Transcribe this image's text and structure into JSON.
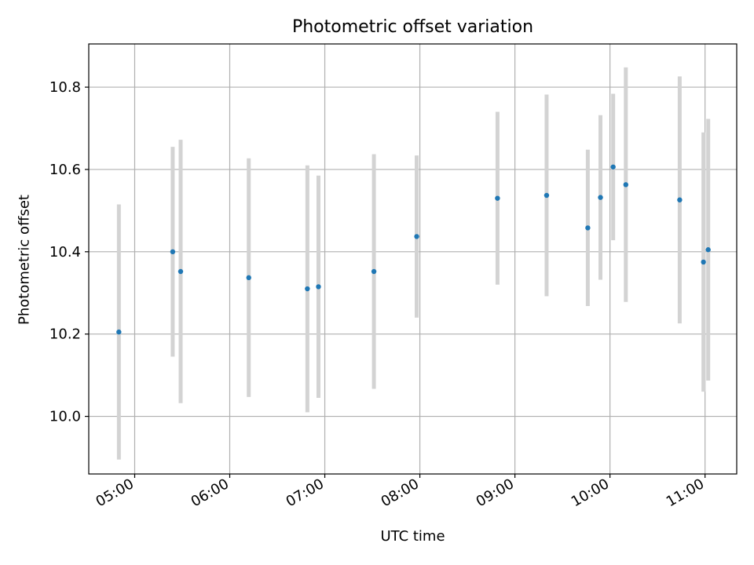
{
  "chart_data": {
    "type": "scatter",
    "title": "Photometric offset variation",
    "xlabel": "UTC time",
    "ylabel": "Photometric offset",
    "x_tick_labels": [
      "05:00",
      "06:00",
      "07:00",
      "08:00",
      "09:00",
      "10:00",
      "11:00"
    ],
    "y_tick_labels": [
      "10.0",
      "10.2",
      "10.4",
      "10.6",
      "10.8"
    ],
    "xlim": [
      "04:31",
      "11:20"
    ],
    "ylim": [
      9.86,
      10.905
    ],
    "grid": true,
    "points": [
      {
        "time": "04:50",
        "y": 10.205,
        "err": 0.31
      },
      {
        "time": "05:24",
        "y": 10.4,
        "err": 0.255
      },
      {
        "time": "05:29",
        "y": 10.352,
        "err": 0.32
      },
      {
        "time": "06:12",
        "y": 10.337,
        "err": 0.29
      },
      {
        "time": "06:49",
        "y": 10.31,
        "err": 0.3
      },
      {
        "time": "06:56",
        "y": 10.315,
        "err": 0.27
      },
      {
        "time": "07:31",
        "y": 10.352,
        "err": 0.285
      },
      {
        "time": "07:58",
        "y": 10.437,
        "err": 0.197
      },
      {
        "time": "08:49",
        "y": 10.53,
        "err": 0.21
      },
      {
        "time": "09:20",
        "y": 10.537,
        "err": 0.245
      },
      {
        "time": "09:46",
        "y": 10.458,
        "err": 0.19
      },
      {
        "time": "09:54",
        "y": 10.532,
        "err": 0.2
      },
      {
        "time": "10:02",
        "y": 10.606,
        "err": 0.178
      },
      {
        "time": "10:10",
        "y": 10.563,
        "err": 0.285
      },
      {
        "time": "10:44",
        "y": 10.526,
        "err": 0.3
      },
      {
        "time": "10:59",
        "y": 10.375,
        "err": 0.315
      },
      {
        "time": "11:02",
        "y": 10.405,
        "err": 0.318
      }
    ],
    "colors": {
      "points": "#1f77b4",
      "errorbars": "#d3d3d3",
      "grid": "#b0b0b0",
      "axes": "#000000"
    }
  }
}
